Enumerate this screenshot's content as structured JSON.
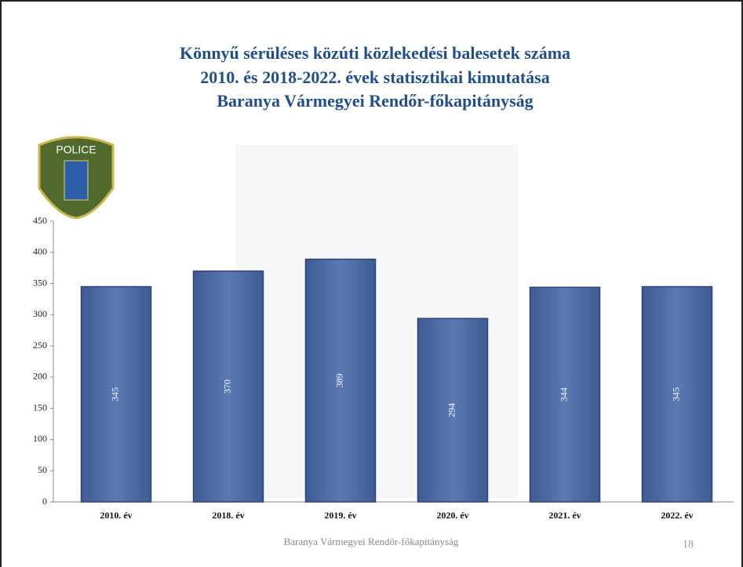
{
  "chart_data": {
    "type": "bar",
    "title": [
      "Könnyű sérüléses közúti közlekedési balesetek száma",
      "2010. és 2018-2022. évek statisztikai kimutatása",
      "Baranya Vármegyei Rendőr-főkapitányság"
    ],
    "categories": [
      "2010. év",
      "2018. év",
      "2019. év",
      "2020. év",
      "2021. év",
      "2022. év"
    ],
    "values": [
      345,
      370,
      389,
      294,
      344,
      345
    ],
    "color": "#5774ae",
    "ylim": [
      0,
      450
    ],
    "yticks": [
      0,
      50,
      100,
      150,
      200,
      250,
      300,
      350,
      400,
      450
    ],
    "grid": false
  },
  "logo": "POLICE",
  "footer": "Baranya Vármegyei Rendőr-főkapitányság",
  "page_number": "18"
}
